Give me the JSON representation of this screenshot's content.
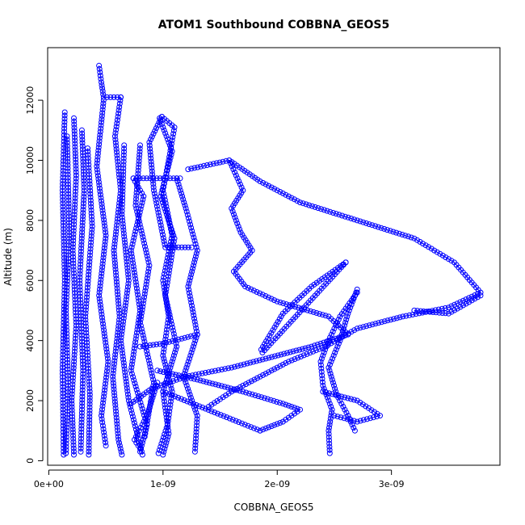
{
  "chart_data": {
    "type": "scatter",
    "title": "ATOM1 Southbound COBBNA_GEOS5",
    "xlabel": "COBBNA_GEOS5",
    "ylabel": "Altitude (m)",
    "xlim": [
      -1e-11,
      3.95e-09
    ],
    "ylim": [
      -150,
      13750
    ],
    "x_ticks": [
      {
        "value": 0,
        "label": "0e+00"
      },
      {
        "value": 1e-09,
        "label": "1e-09"
      },
      {
        "value": 2e-09,
        "label": "2e-09"
      },
      {
        "value": 3e-09,
        "label": "3e-09"
      }
    ],
    "y_ticks": [
      {
        "value": 0,
        "label": "0"
      },
      {
        "value": 2000,
        "label": "2000"
      },
      {
        "value": 4000,
        "label": "4000"
      },
      {
        "value": 6000,
        "label": "6000"
      },
      {
        "value": 8000,
        "label": "8000"
      },
      {
        "value": 10000,
        "label": "10000"
      },
      {
        "value": 12000,
        "label": "12000"
      }
    ],
    "marker": "open-circle",
    "line_style": "connected",
    "grid": false,
    "legend": "none",
    "color": "#0000ff",
    "series": [
      {
        "points": [
          [
            1.3e-10,
            200
          ],
          [
            1.2e-10,
            3000
          ],
          [
            1.4e-10,
            6000
          ],
          [
            1.2e-10,
            9000
          ],
          [
            1.4e-10,
            11600
          ]
        ]
      },
      {
        "points": [
          [
            1.5e-10,
            250
          ],
          [
            1.7e-10,
            2500
          ],
          [
            1.5e-10,
            5000
          ],
          [
            1.8e-10,
            7500
          ],
          [
            1.6e-10,
            10800
          ]
        ]
      },
      {
        "points": [
          [
            2.2e-10,
            200
          ],
          [
            2e-10,
            2000
          ],
          [
            2.4e-10,
            4500
          ],
          [
            2.1e-10,
            7000
          ],
          [
            2.4e-10,
            9500
          ],
          [
            2.2e-10,
            11400
          ]
        ]
      },
      {
        "points": [
          [
            2.8e-10,
            300
          ],
          [
            3e-10,
            3000
          ],
          [
            2.7e-10,
            6000
          ],
          [
            3.1e-10,
            9000
          ],
          [
            2.9e-10,
            11000
          ]
        ]
      },
      {
        "points": [
          [
            3.5e-10,
            200
          ],
          [
            3.6e-10,
            2200
          ],
          [
            3.2e-10,
            4800
          ],
          [
            3.8e-10,
            7800
          ],
          [
            3.4e-10,
            10400
          ]
        ]
      },
      {
        "points": [
          [
            4.4e-10,
            13150
          ],
          [
            4.6e-10,
            12600
          ],
          [
            4.8e-10,
            12100
          ],
          [
            6.3e-10,
            12100
          ]
        ]
      },
      {
        "points": [
          [
            4.8e-10,
            12000
          ],
          [
            4.2e-10,
            9800
          ],
          [
            5e-10,
            7500
          ],
          [
            4.4e-10,
            5500
          ],
          [
            5.2e-10,
            3300
          ],
          [
            4.6e-10,
            1500
          ],
          [
            5e-10,
            500
          ]
        ]
      },
      {
        "points": [
          [
            6.3e-10,
            12100
          ],
          [
            5.8e-10,
            10800
          ],
          [
            6.3e-10,
            9000
          ],
          [
            5.7e-10,
            7000
          ],
          [
            6.2e-10,
            4800
          ],
          [
            5.6e-10,
            2800
          ],
          [
            6.1e-10,
            700
          ],
          [
            6.4e-10,
            200
          ]
        ]
      },
      {
        "points": [
          [
            6.6e-10,
            10500
          ],
          [
            6.4e-10,
            8200
          ],
          [
            7e-10,
            6000
          ],
          [
            6.3e-10,
            4000
          ],
          [
            7e-10,
            2000
          ],
          [
            8.2e-10,
            200
          ]
        ]
      },
      {
        "points": [
          [
            7.4e-10,
            9400
          ],
          [
            8.3e-10,
            8800
          ],
          [
            7.2e-10,
            7000
          ],
          [
            8e-10,
            5000
          ],
          [
            7.2e-10,
            3000
          ],
          [
            8.6e-10,
            1200
          ],
          [
            8e-10,
            300
          ]
        ]
      },
      {
        "points": [
          [
            8e-10,
            10500
          ],
          [
            7.6e-10,
            8500
          ],
          [
            8.8e-10,
            6500
          ],
          [
            8e-10,
            4600
          ],
          [
            9.2e-10,
            2600
          ],
          [
            8.4e-10,
            800
          ]
        ]
      },
      {
        "points": [
          [
            7.4e-10,
            9400
          ],
          [
            1.15e-09,
            9400
          ]
        ]
      },
      {
        "points": [
          [
            9.9e-10,
            11450
          ],
          [
            8.8e-10,
            10600
          ],
          [
            9.2e-10,
            9000
          ],
          [
            1.02e-09,
            7100
          ],
          [
            1.25e-09,
            7100
          ]
        ]
      },
      {
        "points": [
          [
            9.9e-10,
            11450
          ],
          [
            1.1e-09,
            11100
          ],
          [
            1.05e-09,
            10000
          ],
          [
            1e-09,
            9000
          ],
          [
            1.08e-09,
            7500
          ],
          [
            1e-09,
            6000
          ],
          [
            1.05e-09,
            4800
          ],
          [
            1e-09,
            3500
          ],
          [
            1.08e-09,
            2300
          ],
          [
            1.04e-09,
            1200
          ],
          [
            9.6e-10,
            250
          ]
        ]
      },
      {
        "points": [
          [
            9.7e-10,
            11400
          ],
          [
            1.08e-09,
            10300
          ],
          [
            9.8e-10,
            8800
          ],
          [
            1.1e-09,
            7400
          ],
          [
            1.02e-09,
            5500
          ],
          [
            1.12e-09,
            3800
          ],
          [
            1e-09,
            2300
          ],
          [
            1.05e-09,
            900
          ],
          [
            1e-09,
            200
          ]
        ]
      },
      {
        "points": [
          [
            1.12e-09,
            9400
          ],
          [
            1.2e-09,
            8400
          ],
          [
            1.3e-09,
            7000
          ],
          [
            1.22e-09,
            5800
          ],
          [
            1.3e-09,
            4200
          ],
          [
            1.18e-09,
            2800
          ],
          [
            1.3e-09,
            1500
          ],
          [
            1.28e-09,
            300
          ]
        ]
      },
      {
        "points": [
          [
            1.22e-09,
            9700
          ],
          [
            1.58e-09,
            10000
          ],
          [
            1.7e-09,
            9000
          ],
          [
            1.6e-09,
            8400
          ],
          [
            1.68e-09,
            7600
          ],
          [
            1.78e-09,
            7000
          ],
          [
            1.62e-09,
            6300
          ],
          [
            1.72e-09,
            5800
          ],
          [
            2e-09,
            5300
          ],
          [
            2.45e-09,
            4800
          ],
          [
            2.62e-09,
            4200
          ],
          [
            2.3e-09,
            3800
          ],
          [
            1.9e-09,
            3400
          ],
          [
            1.6e-09,
            3100
          ],
          [
            1.2e-09,
            2800
          ],
          [
            9e-10,
            2400
          ],
          [
            7.2e-10,
            1900
          ]
        ]
      },
      {
        "points": [
          [
            1.58e-09,
            10000
          ],
          [
            1.85e-09,
            9300
          ],
          [
            2.2e-09,
            8600
          ],
          [
            2.7e-09,
            8000
          ],
          [
            3.2e-09,
            7400
          ],
          [
            3.55e-09,
            6600
          ],
          [
            3.78e-09,
            5600
          ],
          [
            3.5e-09,
            5100
          ],
          [
            3.1e-09,
            4800
          ],
          [
            2.7e-09,
            4400
          ],
          [
            2.42e-09,
            3800
          ],
          [
            2.1e-09,
            3300
          ],
          [
            1.85e-09,
            2800
          ],
          [
            1.6e-09,
            2300
          ],
          [
            1.4e-09,
            1800
          ]
        ]
      },
      {
        "points": [
          [
            9.5e-10,
            3000
          ],
          [
            1.3e-09,
            2700
          ],
          [
            1.7e-09,
            2300
          ],
          [
            2.05e-09,
            1900
          ],
          [
            2.2e-09,
            1700
          ],
          [
            2.05e-09,
            1300
          ],
          [
            1.85e-09,
            1000
          ]
        ]
      },
      {
        "points": [
          [
            1.85e-09,
            1000
          ],
          [
            1e-09,
            2300
          ]
        ]
      },
      {
        "points": [
          [
            2.6e-09,
            6600
          ],
          [
            1.87e-09,
            3600
          ]
        ]
      },
      {
        "points": [
          [
            2.6e-09,
            6600
          ],
          [
            2.3e-09,
            5800
          ],
          [
            2.05e-09,
            4900
          ],
          [
            1.86e-09,
            3700
          ]
        ]
      },
      {
        "points": [
          [
            2.7e-09,
            5600
          ],
          [
            2.55e-09,
            4800
          ],
          [
            2.45e-09,
            4000
          ],
          [
            2.38e-09,
            3300
          ],
          [
            2.4e-09,
            2500
          ],
          [
            2.48e-09,
            1700
          ],
          [
            2.45e-09,
            1000
          ],
          [
            2.46e-09,
            250
          ]
        ]
      },
      {
        "points": [
          [
            2.7e-09,
            5700
          ],
          [
            2.62e-09,
            4900
          ],
          [
            2.55e-09,
            4000
          ],
          [
            2.45e-09,
            3100
          ],
          [
            2.52e-09,
            2200
          ],
          [
            2.62e-09,
            1500
          ],
          [
            2.68e-09,
            1000
          ]
        ]
      },
      {
        "points": [
          [
            2.4e-09,
            2300
          ],
          [
            2.7e-09,
            2000
          ],
          [
            2.9e-09,
            1500
          ],
          [
            2.7e-09,
            1300
          ],
          [
            2.5e-09,
            1500
          ]
        ]
      },
      {
        "points": [
          [
            3.2e-09,
            5000
          ],
          [
            3.5e-09,
            4900
          ],
          [
            3.78e-09,
            5500
          ]
        ]
      },
      {
        "points": [
          [
            1.3e-09,
            4200
          ],
          [
            1e-09,
            3900
          ],
          [
            8e-10,
            3800
          ]
        ]
      },
      {
        "points": [
          [
            9.5e-10,
            2600
          ],
          [
            8.6e-10,
            1500
          ],
          [
            7.5e-10,
            700
          ],
          [
            8e-10,
            400
          ]
        ]
      }
    ]
  }
}
